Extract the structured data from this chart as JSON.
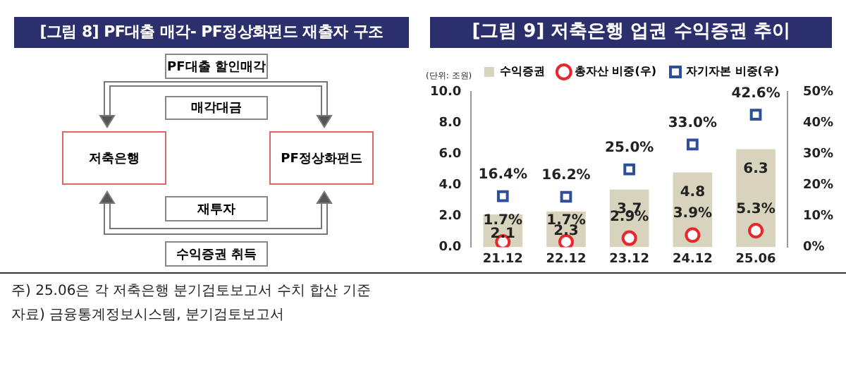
{
  "chart_data": [
    {
      "type": "other",
      "title": "[그림 8] PF대출 매각- PF정상화펀드 재출자 구조",
      "annotations": [
        "PF대출 할인매각",
        "매각대금",
        "저축은행",
        "PF정상화펀드",
        "재투자",
        "수익증권 취득"
      ]
    },
    {
      "type": "bar",
      "title": "[그림 9] 저축은행 업권 수익증권 추이",
      "ylabel": "(단위: 조원)",
      "categories": [
        "21.12",
        "22.12",
        "23.12",
        "24.12",
        "25.06"
      ],
      "series": [
        {
          "name": "수익증권",
          "type": "bar",
          "color": "#d8d3bc",
          "values": [
            2.1,
            2.3,
            3.7,
            4.8,
            6.3
          ],
          "value_labels": [
            "2.1",
            "2.3",
            "3.7",
            "4.8",
            "6.3"
          ]
        },
        {
          "name": "총자산 비중(우)",
          "type": "scatter",
          "marker": "circle",
          "axis": "y2",
          "color": "#e8262b",
          "values": [
            1.7,
            1.7,
            2.9,
            3.9,
            5.3
          ],
          "value_labels": [
            "1.7%",
            "1.7%",
            "2.9%",
            "3.9%",
            "5.3%"
          ]
        },
        {
          "name": "자기자본 비중(우)",
          "type": "scatter",
          "marker": "square",
          "axis": "y2",
          "color": "#2e4d9a",
          "values": [
            16.4,
            16.2,
            25.0,
            33.0,
            42.6
          ],
          "value_labels": [
            "16.4%",
            "16.2%",
            "25.0%",
            "33.0%",
            "42.6%"
          ]
        }
      ],
      "ylim": [
        0,
        10
      ],
      "yticks": [
        {
          "value": 0,
          "label": "0.0"
        },
        {
          "value": 2,
          "label": "2.0"
        },
        {
          "value": 4,
          "label": "4.0"
        },
        {
          "value": 6,
          "label": "6.0"
        },
        {
          "value": 8,
          "label": "8.0"
        },
        {
          "value": 10,
          "label": "10.0"
        }
      ],
      "y2lim": [
        0,
        50
      ],
      "y2ticks": [
        {
          "value": 0,
          "label": "0%"
        },
        {
          "value": 10,
          "label": "10%"
        },
        {
          "value": 20,
          "label": "20%"
        },
        {
          "value": 30,
          "label": "30%"
        },
        {
          "value": 40,
          "label": "40%"
        },
        {
          "value": 50,
          "label": "50%"
        }
      ],
      "grid": false,
      "legend": "top",
      "annotations": [
        "주) 25.06은 각 저축은행 분기검토보고서 수치 합산 기준",
        "자료) 금융통계정보시스템, 분기검토보고서"
      ]
    }
  ]
}
